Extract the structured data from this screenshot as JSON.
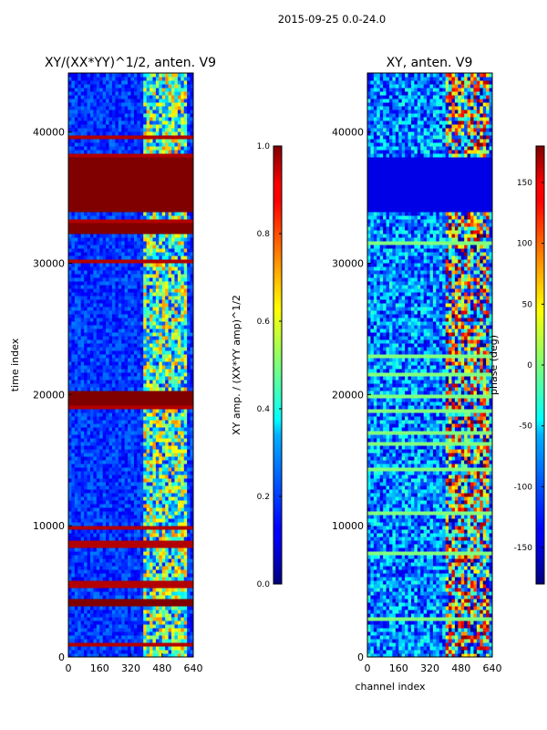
{
  "figure": {
    "suptitle": "2015-09-25 0.0-24.0"
  },
  "chart_data": [
    {
      "type": "heatmap",
      "title": "XY/(XX*YY)^1/2, anten. V9",
      "xlabel": "",
      "ylabel": "time index",
      "xlim": [
        0,
        640
      ],
      "ylim": [
        0,
        44500
      ],
      "xticks": [
        "0",
        "160",
        "320",
        "480",
        "640"
      ],
      "yticks": [
        "0",
        "10000",
        "20000",
        "30000",
        "40000"
      ],
      "colorbar": {
        "label": "XY amp. / (XX*YY amp)^1/2",
        "range": [
          0.0,
          1.0
        ],
        "ticks": [
          "0.0",
          "0.2",
          "0.4",
          "0.6",
          "0.8",
          "1.0"
        ]
      },
      "features": [
        {
          "kind": "saturated_band",
          "y_start": 34200,
          "y_end": 37900,
          "value": 1.0
        },
        {
          "kind": "saturated_band",
          "y_start": 32500,
          "y_end": 33000,
          "value": 1.0
        },
        {
          "kind": "saturated_band",
          "y_start": 3900,
          "y_end": 4400,
          "value": 1.0
        },
        {
          "kind": "saturated_band",
          "y_start": 19300,
          "y_end": 20100,
          "value": 1.0
        },
        {
          "kind": "high_amp_column_region",
          "x_start": 370,
          "x_end": 600
        }
      ]
    },
    {
      "type": "heatmap",
      "title": "XY, anten. V9",
      "xlabel": "channel index",
      "ylabel": "",
      "xlim": [
        0,
        640
      ],
      "ylim": [
        0,
        44500
      ],
      "xticks": [
        "0",
        "160",
        "320",
        "480",
        "640"
      ],
      "yticks": [
        "0",
        "10000",
        "20000",
        "30000",
        "40000"
      ],
      "colorbar": {
        "label": "phase (deg)",
        "range": [
          -180,
          180
        ],
        "ticks": [
          "-150",
          "-100",
          "-50",
          "0",
          "50",
          "100",
          "150"
        ]
      },
      "features": [
        {
          "kind": "flagged_band",
          "y_start": 34200,
          "y_end": 37900
        },
        {
          "kind": "active_column_region",
          "x_start": 400,
          "x_end": 620
        }
      ]
    }
  ]
}
